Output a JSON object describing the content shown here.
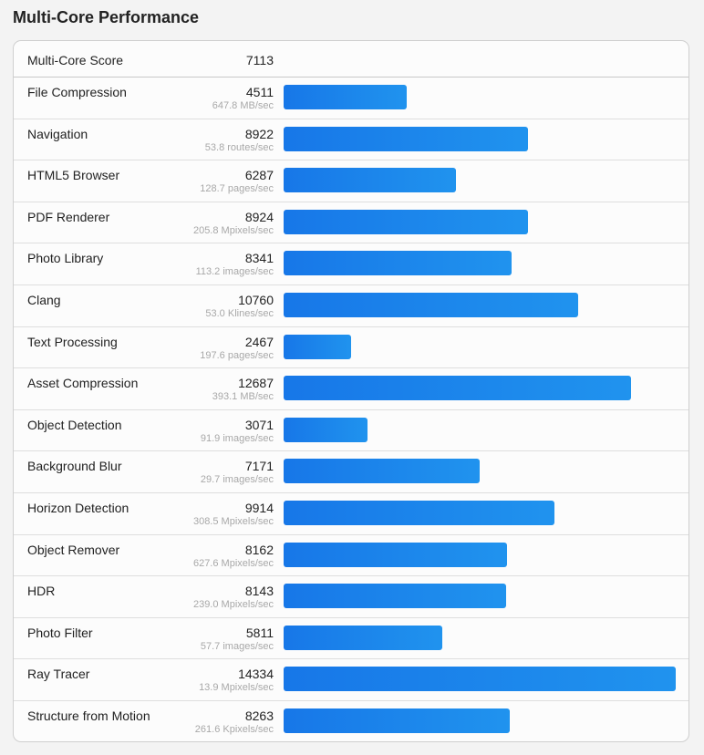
{
  "page": {
    "title": "Multi-Core Performance"
  },
  "summary": {
    "label": "Multi-Core Score",
    "value": "7113"
  },
  "colors": {
    "bar_start": "#1777e8",
    "bar_end": "#2093ee",
    "rate_text": "#a8a8a8"
  },
  "rows": [
    {
      "label": "File Compression",
      "score": "4511",
      "rate": "647.8 MB/sec"
    },
    {
      "label": "Navigation",
      "score": "8922",
      "rate": "53.8 routes/sec"
    },
    {
      "label": "HTML5 Browser",
      "score": "6287",
      "rate": "128.7 pages/sec"
    },
    {
      "label": "PDF Renderer",
      "score": "8924",
      "rate": "205.8 Mpixels/sec"
    },
    {
      "label": "Photo Library",
      "score": "8341",
      "rate": "113.2 images/sec"
    },
    {
      "label": "Clang",
      "score": "10760",
      "rate": "53.0 Klines/sec"
    },
    {
      "label": "Text Processing",
      "score": "2467",
      "rate": "197.6 pages/sec"
    },
    {
      "label": "Asset Compression",
      "score": "12687",
      "rate": "393.1 MB/sec"
    },
    {
      "label": "Object Detection",
      "score": "3071",
      "rate": "91.9 images/sec"
    },
    {
      "label": "Background Blur",
      "score": "7171",
      "rate": "29.7 images/sec"
    },
    {
      "label": "Horizon Detection",
      "score": "9914",
      "rate": "308.5 Mpixels/sec"
    },
    {
      "label": "Object Remover",
      "score": "8162",
      "rate": "627.6 Mpixels/sec"
    },
    {
      "label": "HDR",
      "score": "8143",
      "rate": "239.0 Mpixels/sec"
    },
    {
      "label": "Photo Filter",
      "score": "5811",
      "rate": "57.7 images/sec"
    },
    {
      "label": "Ray Tracer",
      "score": "14334",
      "rate": "13.9 Mpixels/sec"
    },
    {
      "label": "Structure from Motion",
      "score": "8263",
      "rate": "261.6 Kpixels/sec"
    }
  ],
  "chart_data": {
    "type": "bar",
    "orientation": "horizontal",
    "title": "Multi-Core Performance",
    "summary": {
      "label": "Multi-Core Score",
      "value": 7113
    },
    "categories": [
      "File Compression",
      "Navigation",
      "HTML5 Browser",
      "PDF Renderer",
      "Photo Library",
      "Clang",
      "Text Processing",
      "Asset Compression",
      "Object Detection",
      "Background Blur",
      "Horizon Detection",
      "Object Remover",
      "HDR",
      "Photo Filter",
      "Ray Tracer",
      "Structure from Motion"
    ],
    "values": [
      4511,
      8922,
      6287,
      8924,
      8341,
      10760,
      2467,
      12687,
      3071,
      7171,
      9914,
      8162,
      8143,
      5811,
      14334,
      8263
    ],
    "rates": [
      "647.8 MB/sec",
      "53.8 routes/sec",
      "128.7 pages/sec",
      "205.8 Mpixels/sec",
      "113.2 images/sec",
      "53.0 Klines/sec",
      "197.6 pages/sec",
      "393.1 MB/sec",
      "91.9 images/sec",
      "29.7 images/sec",
      "308.5 Mpixels/sec",
      "627.6 Mpixels/sec",
      "239.0 Mpixels/sec",
      "57.7 images/sec",
      "13.9 Mpixels/sec",
      "261.6 Kpixels/sec"
    ],
    "xlabel": "",
    "ylabel": "",
    "xlim": [
      0,
      14334
    ],
    "grid": false,
    "legend": "none"
  }
}
